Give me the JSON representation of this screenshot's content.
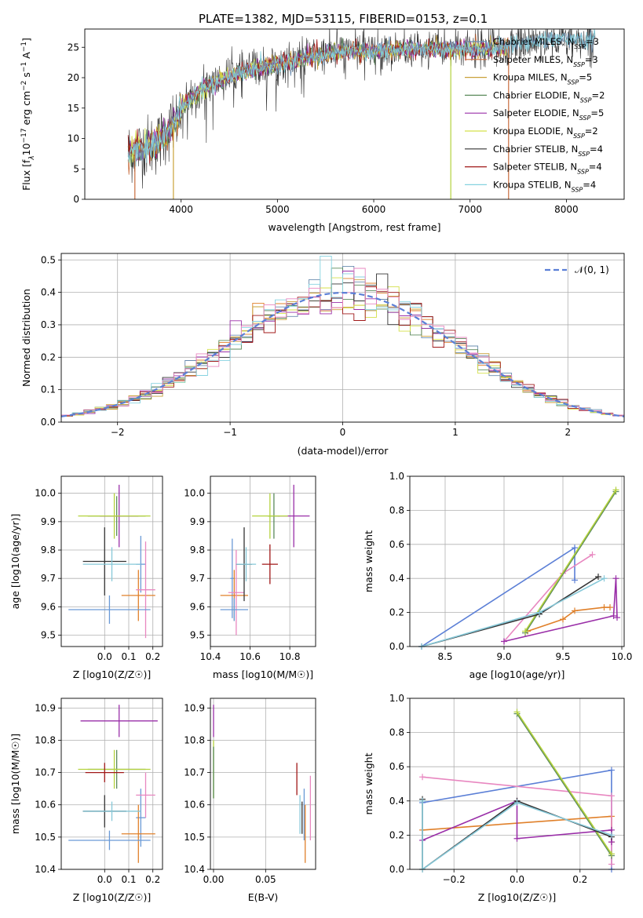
{
  "figure": {
    "title": "PLATE=1382, MJD=53115, FIBERID=0153, z=0.1"
  },
  "chart_data": [
    {
      "id": "spectrum",
      "type": "line",
      "xlabel": "wavelength [Angstrom, rest frame]",
      "ylabel": "Flux [f_λ10^-17 erg cm^-2 s^-1 A^-1]",
      "ylabel_parts": {
        "a": "Flux [f",
        "b": "λ",
        "c": "10",
        "d": "−17",
        "e": " erg cm",
        "f": "−2",
        "g": " s",
        "h": "−1",
        "i": " A",
        "j": "−1",
        "k": "]"
      },
      "xlim": [
        3000,
        8600
      ],
      "ylim": [
        0,
        28
      ],
      "xticks": [
        4000,
        5000,
        6000,
        7000,
        8000
      ],
      "yticks": [
        0,
        5,
        10,
        15,
        20,
        25
      ],
      "grid": false,
      "legend_position": "top-right",
      "legend": [
        {
          "base": "Chabrier MILES, N",
          "sub": "SSP",
          "tail": "=3",
          "color": "#6a8caf"
        },
        {
          "base": "Salpeter MILES, N",
          "sub": "SSP",
          "tail": "=3",
          "color": "#c86c3c"
        },
        {
          "base": "Kroupa MILES, N",
          "sub": "SSP",
          "tail": "=5",
          "color": "#c9a13a"
        },
        {
          "base": "Chabrier ELODIE, N",
          "sub": "SSP",
          "tail": "=2",
          "color": "#5b8a5b"
        },
        {
          "base": "Salpeter ELODIE, N",
          "sub": "SSP",
          "tail": "=5",
          "color": "#9a2fa8"
        },
        {
          "base": "Kroupa ELODIE, N",
          "sub": "SSP",
          "tail": "=2",
          "color": "#d4e04a"
        },
        {
          "base": "Chabrier STELIB, N",
          "sub": "SSP",
          "tail": "=4",
          "color": "#333333"
        },
        {
          "base": "Salpeter STELIB, N",
          "sub": "SSP",
          "tail": "=4",
          "color": "#a01818"
        },
        {
          "base": "Kroupa STELIB, N",
          "sub": "SSP",
          "tail": "=4",
          "color": "#86d2e0"
        }
      ],
      "series_envelope": {
        "x": [
          3450,
          3600,
          3750,
          3850,
          3950,
          4000,
          4100,
          4200,
          4300,
          4400,
          4500,
          4600,
          4700,
          4800,
          4900,
          5000,
          5100,
          5200,
          5300,
          5400,
          5500,
          5600,
          5800,
          6000,
          6200,
          6400,
          6600,
          6800,
          7000,
          7200,
          7400,
          7600,
          7800,
          8000,
          8200,
          8300
        ],
        "y": [
          7.8,
          8.5,
          9.2,
          11,
          13,
          15,
          16.5,
          17.8,
          18.8,
          19.5,
          20.2,
          20.8,
          21.2,
          21.6,
          22,
          22.2,
          22.5,
          23,
          23.4,
          23.6,
          23.8,
          24.1,
          24.4,
          24.3,
          24.5,
          24.6,
          24.7,
          24.7,
          24.8,
          24.6,
          25.2,
          25.8,
          26.2,
          26.4,
          26.0,
          26.5
        ]
      }
    },
    {
      "id": "residuals",
      "type": "histogram",
      "xlabel": "(data-model)/error",
      "ylabel": "Normed distribution",
      "xlim": [
        -2.5,
        2.5
      ],
      "ylim": [
        0,
        0.52
      ],
      "xticks": [
        -2,
        -1,
        0,
        1,
        2
      ],
      "yticks": [
        0.0,
        0.1,
        0.2,
        0.3,
        0.4,
        0.5
      ],
      "grid": true,
      "legend_position": "top-right",
      "legend": [
        {
          "label": "𝒩(0, 1)",
          "color": "#5b7fd6",
          "style": "dashed"
        }
      ],
      "bin_width": 0.1
    },
    {
      "id": "age_vs_Z",
      "type": "errorbar",
      "xlabel": "Z [log10(Z/Z☉)]",
      "ylabel": "age [log10(age/yr)]",
      "xlim": [
        -0.18,
        0.24
      ],
      "ylim": [
        9.46,
        10.06
      ],
      "xticks": [
        0.0,
        0.1,
        0.2
      ],
      "yticks": [
        9.5,
        9.6,
        9.7,
        9.8,
        9.9,
        10.0
      ],
      "grid": true,
      "points": [
        {
          "x": 0.15,
          "y": 9.75,
          "xerr": 0.02,
          "yerr": 0.1,
          "color": "#6a9ad6"
        },
        {
          "x": 0.14,
          "y": 9.64,
          "xerr": 0.07,
          "yerr": 0.09,
          "color": "#e0802a"
        },
        {
          "x": 0.17,
          "y": 9.66,
          "xerr": 0.04,
          "yerr": 0.17,
          "color": "#e887c0"
        },
        {
          "x": 0.02,
          "y": 9.59,
          "xerr": 0.17,
          "yerr": 0.05,
          "color": "#6a9ad6"
        },
        {
          "x": 0.05,
          "y": 9.92,
          "xerr": 0.12,
          "yerr": 0.07,
          "color": "#5b8a5b"
        },
        {
          "x": 0.06,
          "y": 9.92,
          "xerr": 0.08,
          "yerr": 0.11,
          "color": "#9a2fa8"
        },
        {
          "x": 0.04,
          "y": 9.92,
          "xerr": 0.15,
          "yerr": 0.08,
          "color": "#b4d23c"
        },
        {
          "x": 0.0,
          "y": 9.76,
          "xerr": 0.09,
          "yerr": 0.12,
          "color": "#333333"
        },
        {
          "x": 0.03,
          "y": 9.75,
          "xerr": 0.12,
          "yerr": 0.06,
          "color": "#86c8d8"
        }
      ]
    },
    {
      "id": "age_vs_mass",
      "type": "errorbar",
      "xlabel": "mass [log10(M/M☉)]",
      "ylabel": "",
      "xlim": [
        10.4,
        10.93
      ],
      "ylim": [
        9.46,
        10.06
      ],
      "xticks": [
        10.4,
        10.6,
        10.8
      ],
      "yticks": [
        9.5,
        9.6,
        9.7,
        9.8,
        9.9,
        10.0
      ],
      "grid": true,
      "points": [
        {
          "x": 10.51,
          "y": 9.7,
          "xerr": 0.01,
          "yerr": 0.14,
          "color": "#6a9ad6"
        },
        {
          "x": 10.52,
          "y": 9.64,
          "xerr": 0.07,
          "yerr": 0.09,
          "color": "#e0802a"
        },
        {
          "x": 10.53,
          "y": 9.65,
          "xerr": 0.04,
          "yerr": 0.15,
          "color": "#e887c0"
        },
        {
          "x": 10.52,
          "y": 9.59,
          "xerr": 0.07,
          "yerr": 0.04,
          "color": "#6a9ad6"
        },
        {
          "x": 10.72,
          "y": 9.92,
          "xerr": 0.03,
          "yerr": 0.08,
          "color": "#5b8a5b"
        },
        {
          "x": 10.82,
          "y": 9.92,
          "xerr": 0.08,
          "yerr": 0.11,
          "color": "#9a2fa8"
        },
        {
          "x": 10.7,
          "y": 9.92,
          "xerr": 0.09,
          "yerr": 0.08,
          "color": "#b4d23c"
        },
        {
          "x": 10.57,
          "y": 9.75,
          "xerr": 0.04,
          "yerr": 0.13,
          "color": "#333333"
        },
        {
          "x": 10.7,
          "y": 9.75,
          "xerr": 0.04,
          "yerr": 0.07,
          "color": "#a01818"
        },
        {
          "x": 10.58,
          "y": 9.75,
          "xerr": 0.05,
          "yerr": 0.06,
          "color": "#86c8d8"
        }
      ]
    },
    {
      "id": "weight_vs_age",
      "type": "line",
      "xlabel": "age [log10(age/yr)]",
      "ylabel": "mass weight",
      "xlim": [
        8.2,
        10.02
      ],
      "ylim": [
        0.0,
        1.0
      ],
      "xticks": [
        8.5,
        9.0,
        9.5,
        10.0
      ],
      "yticks": [
        0.0,
        0.2,
        0.4,
        0.6,
        0.8,
        1.0
      ],
      "grid": true,
      "series": [
        {
          "color": "#5b7fd6",
          "x": [
            8.3,
            9.6,
            9.6
          ],
          "y": [
            0.0,
            0.58,
            0.39
          ]
        },
        {
          "color": "#e0802a",
          "x": [
            9.2,
            9.5,
            9.6,
            9.85,
            9.9
          ],
          "y": [
            0.09,
            0.16,
            0.21,
            0.23,
            0.23
          ]
        },
        {
          "color": "#e887c0",
          "x": [
            9.0,
            9.5,
            9.75
          ],
          "y": [
            0.03,
            0.43,
            0.54
          ]
        },
        {
          "color": "#5b8a5b",
          "x": [
            9.18,
            9.95
          ],
          "y": [
            0.08,
            0.91
          ]
        },
        {
          "color": "#9a2fa8",
          "x": [
            9.0,
            9.93,
            9.95,
            9.96
          ],
          "y": [
            0.03,
            0.18,
            0.4,
            0.17
          ]
        },
        {
          "color": "#b4d23c",
          "x": [
            9.18,
            9.95
          ],
          "y": [
            0.09,
            0.92
          ]
        },
        {
          "color": "#333333",
          "x": [
            8.3,
            9.3,
            9.8
          ],
          "y": [
            0.0,
            0.19,
            0.41
          ]
        },
        {
          "color": "#86c8d8",
          "x": [
            8.3,
            9.3,
            9.85
          ],
          "y": [
            0.0,
            0.2,
            0.4
          ]
        }
      ]
    },
    {
      "id": "mass_vs_Z",
      "type": "errorbar",
      "xlabel": "Z [log10(Z/Z☉)]",
      "ylabel": "mass [log10(M/M☉)]",
      "xlim": [
        -0.18,
        0.24
      ],
      "ylim": [
        10.4,
        10.93
      ],
      "xticks": [
        0.0,
        0.1,
        0.2
      ],
      "yticks": [
        10.4,
        10.5,
        10.6,
        10.7,
        10.8,
        10.9
      ],
      "grid": true,
      "points": [
        {
          "x": 0.15,
          "y": 10.56,
          "xerr": 0.02,
          "yerr": 0.09,
          "color": "#6a9ad6"
        },
        {
          "x": 0.14,
          "y": 10.51,
          "xerr": 0.07,
          "yerr": 0.09,
          "color": "#e0802a"
        },
        {
          "x": 0.17,
          "y": 10.63,
          "xerr": 0.04,
          "yerr": 0.07,
          "color": "#e887c0"
        },
        {
          "x": 0.02,
          "y": 10.49,
          "xerr": 0.17,
          "yerr": 0.03,
          "color": "#6a9ad6"
        },
        {
          "x": 0.05,
          "y": 10.71,
          "xerr": 0.12,
          "yerr": 0.06,
          "color": "#5b8a5b"
        },
        {
          "x": 0.06,
          "y": 10.86,
          "xerr": 0.16,
          "yerr": 0.05,
          "color": "#9a2fa8"
        },
        {
          "x": 0.04,
          "y": 10.71,
          "xerr": 0.15,
          "yerr": 0.06,
          "color": "#b4d23c"
        },
        {
          "x": 0.0,
          "y": 10.58,
          "xerr": 0.09,
          "yerr": 0.05,
          "color": "#333333"
        },
        {
          "x": 0.0,
          "y": 10.7,
          "xerr": 0.08,
          "yerr": 0.03,
          "color": "#a01818"
        },
        {
          "x": 0.03,
          "y": 10.58,
          "xerr": 0.12,
          "yerr": 0.03,
          "color": "#86c8d8"
        }
      ]
    },
    {
      "id": "mass_vs_EBV",
      "type": "errorbar",
      "xlabel": "E(B-V)",
      "ylabel": "",
      "xlim": [
        -0.003,
        0.098
      ],
      "ylim": [
        10.4,
        10.93
      ],
      "xticks": [
        0.0,
        0.05
      ],
      "yticks": [
        10.4,
        10.5,
        10.6,
        10.7,
        10.8,
        10.9
      ],
      "grid": true,
      "points": [
        {
          "x": 0.0,
          "y": 10.86,
          "xerr": 0.0,
          "yerr": 0.05,
          "color": "#9a2fa8"
        },
        {
          "x": 0.0,
          "y": 10.71,
          "xerr": 0.0,
          "yerr": 0.09,
          "color": "#b4d23c"
        },
        {
          "x": 0.0,
          "y": 10.7,
          "xerr": 0.0,
          "yerr": 0.08,
          "color": "#5b8a5b"
        },
        {
          "x": 0.08,
          "y": 10.68,
          "xerr": 0.0,
          "yerr": 0.05,
          "color": "#a01818"
        },
        {
          "x": 0.083,
          "y": 10.57,
          "xerr": 0.0,
          "yerr": 0.06,
          "color": "#86c8d8"
        },
        {
          "x": 0.085,
          "y": 10.56,
          "xerr": 0.0,
          "yerr": 0.05,
          "color": "#333333"
        },
        {
          "x": 0.087,
          "y": 10.57,
          "xerr": 0.0,
          "yerr": 0.08,
          "color": "#6a9ad6"
        },
        {
          "x": 0.088,
          "y": 10.51,
          "xerr": 0.0,
          "yerr": 0.09,
          "color": "#e0802a"
        },
        {
          "x": 0.093,
          "y": 10.59,
          "xerr": 0.0,
          "yerr": 0.1,
          "color": "#e887c0"
        }
      ]
    },
    {
      "id": "weight_vs_Z",
      "type": "line",
      "xlabel": "Z [log10(Z/Z☉)]",
      "ylabel": "mass weight",
      "xlim": [
        -0.34,
        0.34
      ],
      "ylim": [
        0.0,
        1.0
      ],
      "xticks": [
        -0.2,
        0.0,
        0.2
      ],
      "yticks": [
        0.0,
        0.2,
        0.4,
        0.6,
        0.8,
        1.0
      ],
      "grid": true,
      "series": [
        {
          "color": "#5b7fd6",
          "x": [
            -0.3,
            0.3,
            0.3
          ],
          "y": [
            0.39,
            0.58,
            0.0
          ]
        },
        {
          "color": "#e0802a",
          "x": [
            -0.3,
            0.3,
            0.3
          ],
          "y": [
            0.23,
            0.31,
            0.16
          ]
        },
        {
          "color": "#e887c0",
          "x": [
            -0.3,
            0.3,
            0.3
          ],
          "y": [
            0.54,
            0.43,
            0.03
          ]
        },
        {
          "color": "#5b8a5b",
          "x": [
            0.0,
            0.3
          ],
          "y": [
            0.91,
            0.08
          ]
        },
        {
          "color": "#9a2fa8",
          "x": [
            -0.3,
            0.0,
            0.0,
            0.3,
            0.3
          ],
          "y": [
            0.17,
            0.4,
            0.18,
            0.23,
            0.16
          ]
        },
        {
          "color": "#b4d23c",
          "x": [
            0.0,
            0.3
          ],
          "y": [
            0.92,
            0.09
          ]
        },
        {
          "color": "#333333",
          "x": [
            -0.3,
            -0.3,
            0.0,
            0.3
          ],
          "y": [
            0.41,
            0.0,
            0.4,
            0.19
          ]
        },
        {
          "color": "#86c8d8",
          "x": [
            -0.3,
            -0.3,
            0.0,
            0.3
          ],
          "y": [
            0.4,
            0.0,
            0.39,
            0.2
          ]
        }
      ]
    }
  ]
}
